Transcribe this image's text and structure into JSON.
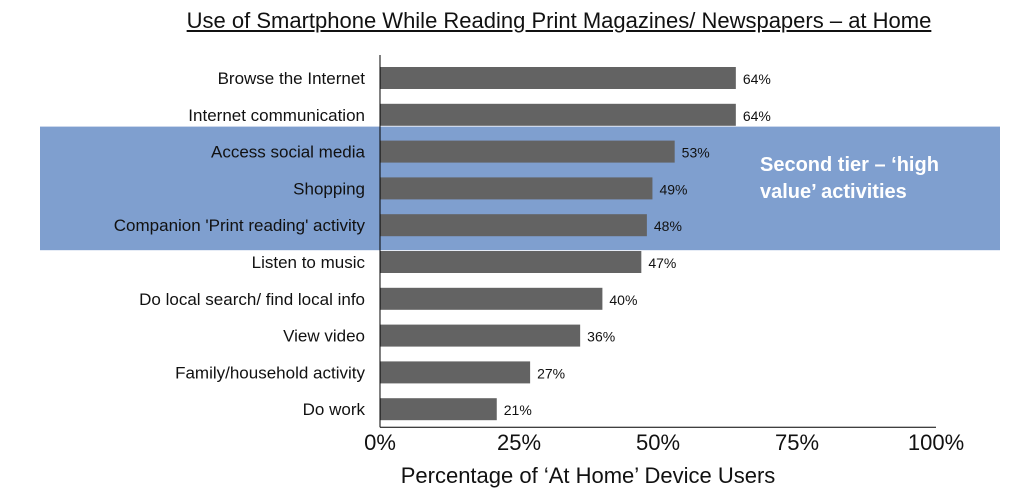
{
  "chart_data": {
    "type": "bar",
    "orientation": "horizontal",
    "title": "Use of Smartphone While Reading Print Magazines/ Newspapers – at Home",
    "xlabel": "Percentage of ‘At Home’ Device Users",
    "ylabel": "",
    "xlim": [
      0,
      100
    ],
    "x_ticks": [
      "0%",
      "25%",
      "50%",
      "75%",
      "100%"
    ],
    "x_tick_values": [
      0,
      25,
      50,
      75,
      100
    ],
    "categories": [
      "Browse the Internet",
      "Internet communication",
      "Access social media",
      "Shopping",
      "Companion 'Print reading' activity",
      "Listen to music",
      "Do local search/ find local info",
      "View video",
      "Family/household activity",
      "Do work"
    ],
    "values": [
      64,
      64,
      53,
      49,
      48,
      47,
      40,
      36,
      27,
      21
    ],
    "data_labels": [
      "64%",
      "64%",
      "53%",
      "49%",
      "48%",
      "47%",
      "40%",
      "36%",
      "27%",
      "21%"
    ],
    "highlight": {
      "categories": [
        "Access social media",
        "Shopping",
        "Companion 'Print reading' activity"
      ],
      "text": "Second tier – ‘high value’ activities"
    },
    "grid": false
  },
  "colors": {
    "bar": "#636363",
    "highlight_band": "#7f9fcf",
    "highlight_text": "#ffffff",
    "text": "#111111"
  }
}
